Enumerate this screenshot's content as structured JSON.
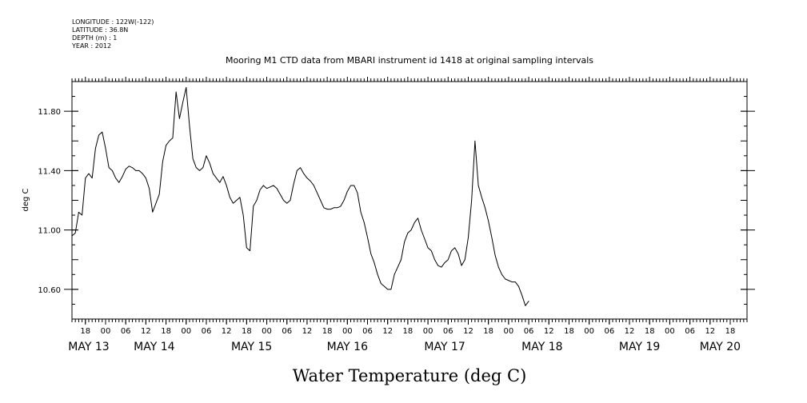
{
  "header": {
    "longitude": "LONGITUDE : 122W(-122)",
    "latitude": "LATITUDE : 36.8N",
    "depth": "DEPTH (m) : 1",
    "year": "YEAR : 2012"
  },
  "footer_label": "Water Temperature (deg C)",
  "chart_data": {
    "type": "line",
    "title": "Mooring M1 CTD data from MBARI instrument id 1418 at original sampling intervals",
    "xlabel": "",
    "ylabel": "deg C",
    "x_unit": "hours since 2012-05-12 14:00 (local plot axis)",
    "xlim": [
      0,
      201
    ],
    "ylim": [
      10.4,
      12.0
    ],
    "y_ticks": [
      10.6,
      11.0,
      11.4,
      11.8
    ],
    "y_tick_labels": [
      "10.60",
      "11.00",
      "11.40",
      "11.80"
    ],
    "x_hour_ticks": [
      {
        "x": 4,
        "label": "18"
      },
      {
        "x": 10,
        "label": "00"
      },
      {
        "x": 16,
        "label": "06"
      },
      {
        "x": 22,
        "label": "12"
      },
      {
        "x": 28,
        "label": "18"
      },
      {
        "x": 34,
        "label": "00"
      },
      {
        "x": 40,
        "label": "06"
      },
      {
        "x": 46,
        "label": "12"
      },
      {
        "x": 52,
        "label": "18"
      },
      {
        "x": 58,
        "label": "00"
      },
      {
        "x": 64,
        "label": "06"
      },
      {
        "x": 70,
        "label": "12"
      },
      {
        "x": 76,
        "label": "18"
      },
      {
        "x": 82,
        "label": "00"
      },
      {
        "x": 88,
        "label": "06"
      },
      {
        "x": 94,
        "label": "12"
      },
      {
        "x": 100,
        "label": "18"
      },
      {
        "x": 106,
        "label": "00"
      },
      {
        "x": 112,
        "label": "06"
      },
      {
        "x": 118,
        "label": "12"
      },
      {
        "x": 124,
        "label": "18"
      },
      {
        "x": 130,
        "label": "00"
      },
      {
        "x": 136,
        "label": "06"
      },
      {
        "x": 142,
        "label": "12"
      },
      {
        "x": 148,
        "label": "18"
      },
      {
        "x": 154,
        "label": "00"
      },
      {
        "x": 160,
        "label": "06"
      },
      {
        "x": 166,
        "label": "12"
      },
      {
        "x": 172,
        "label": "18"
      },
      {
        "x": 178,
        "label": "00"
      },
      {
        "x": 184,
        "label": "06"
      },
      {
        "x": 190,
        "label": "12"
      },
      {
        "x": 196,
        "label": "18"
      }
    ],
    "x_date_labels": [
      {
        "x": 5,
        "label": "MAY 13"
      },
      {
        "x": 24.5,
        "label": "MAY 14"
      },
      {
        "x": 53.5,
        "label": "MAY 15"
      },
      {
        "x": 82,
        "label": "MAY 16"
      },
      {
        "x": 111,
        "label": "MAY 17"
      },
      {
        "x": 140,
        "label": "MAY 18"
      },
      {
        "x": 169,
        "label": "MAY 19"
      },
      {
        "x": 193,
        "label": "MAY 20"
      }
    ],
    "series": [
      {
        "points": [
          [
            0,
            10.96
          ],
          [
            1,
            10.98
          ],
          [
            2,
            11.12
          ],
          [
            3,
            11.1
          ],
          [
            4,
            11.35
          ],
          [
            5,
            11.38
          ],
          [
            6,
            11.35
          ],
          [
            7,
            11.55
          ],
          [
            8,
            11.64
          ],
          [
            9,
            11.66
          ],
          [
            10,
            11.55
          ],
          [
            11,
            11.42
          ],
          [
            12,
            11.4
          ],
          [
            13,
            11.35
          ],
          [
            14,
            11.32
          ],
          [
            15,
            11.36
          ],
          [
            16,
            11.41
          ],
          [
            17,
            11.43
          ],
          [
            18,
            11.42
          ],
          [
            19,
            11.4
          ],
          [
            20,
            11.4
          ],
          [
            21,
            11.38
          ],
          [
            22,
            11.35
          ],
          [
            23,
            11.28
          ],
          [
            24,
            11.12
          ],
          [
            25,
            11.18
          ],
          [
            26,
            11.24
          ],
          [
            27,
            11.46
          ],
          [
            28,
            11.57
          ],
          [
            29,
            11.6
          ],
          [
            30,
            11.62
          ],
          [
            31,
            11.93
          ],
          [
            32,
            11.75
          ],
          [
            33,
            11.86
          ],
          [
            34,
            11.96
          ],
          [
            35,
            11.7
          ],
          [
            36,
            11.48
          ],
          [
            37,
            11.42
          ],
          [
            38,
            11.4
          ],
          [
            39,
            11.42
          ],
          [
            40,
            11.5
          ],
          [
            41,
            11.45
          ],
          [
            42,
            11.38
          ],
          [
            43,
            11.35
          ],
          [
            44,
            11.32
          ],
          [
            45,
            11.36
          ],
          [
            46,
            11.3
          ],
          [
            47,
            11.22
          ],
          [
            48,
            11.18
          ],
          [
            49,
            11.2
          ],
          [
            50,
            11.22
          ],
          [
            51,
            11.1
          ],
          [
            52,
            10.88
          ],
          [
            53,
            10.86
          ],
          [
            54,
            11.16
          ],
          [
            55,
            11.2
          ],
          [
            56,
            11.27
          ],
          [
            57,
            11.3
          ],
          [
            58,
            11.28
          ],
          [
            59,
            11.29
          ],
          [
            60,
            11.3
          ],
          [
            61,
            11.28
          ],
          [
            62,
            11.24
          ],
          [
            63,
            11.2
          ],
          [
            64,
            11.18
          ],
          [
            65,
            11.2
          ],
          [
            66,
            11.31
          ],
          [
            67,
            11.4
          ],
          [
            68,
            11.42
          ],
          [
            69,
            11.38
          ],
          [
            70,
            11.35
          ],
          [
            71,
            11.33
          ],
          [
            72,
            11.3
          ],
          [
            73,
            11.25
          ],
          [
            74,
            11.2
          ],
          [
            75,
            11.15
          ],
          [
            76,
            11.14
          ],
          [
            77,
            11.14
          ],
          [
            78,
            11.15
          ],
          [
            79,
            11.15
          ],
          [
            80,
            11.16
          ],
          [
            81,
            11.2
          ],
          [
            82,
            11.26
          ],
          [
            83,
            11.3
          ],
          [
            84,
            11.3
          ],
          [
            85,
            11.25
          ],
          [
            86,
            11.12
          ],
          [
            87,
            11.05
          ],
          [
            88,
            10.95
          ],
          [
            89,
            10.84
          ],
          [
            90,
            10.78
          ],
          [
            91,
            10.7
          ],
          [
            92,
            10.64
          ],
          [
            93,
            10.62
          ],
          [
            94,
            10.6
          ],
          [
            95,
            10.6
          ],
          [
            96,
            10.7
          ],
          [
            97,
            10.75
          ],
          [
            98,
            10.8
          ],
          [
            99,
            10.92
          ],
          [
            100,
            10.98
          ],
          [
            101,
            11.0
          ],
          [
            102,
            11.05
          ],
          [
            103,
            11.08
          ],
          [
            104,
            11.0
          ],
          [
            105,
            10.94
          ],
          [
            106,
            10.88
          ],
          [
            107,
            10.86
          ],
          [
            108,
            10.8
          ],
          [
            109,
            10.76
          ],
          [
            110,
            10.75
          ],
          [
            111,
            10.78
          ],
          [
            112,
            10.8
          ],
          [
            113,
            10.86
          ],
          [
            114,
            10.88
          ],
          [
            115,
            10.84
          ],
          [
            116,
            10.76
          ],
          [
            117,
            10.8
          ],
          [
            118,
            10.95
          ],
          [
            119,
            11.2
          ],
          [
            120,
            11.6
          ],
          [
            121,
            11.3
          ],
          [
            122,
            11.22
          ],
          [
            123,
            11.15
          ],
          [
            124,
            11.06
          ],
          [
            125,
            10.95
          ],
          [
            126,
            10.83
          ],
          [
            127,
            10.75
          ],
          [
            128,
            10.7
          ],
          [
            129,
            10.67
          ],
          [
            130,
            10.66
          ],
          [
            131,
            10.65
          ],
          [
            132,
            10.65
          ],
          [
            133,
            10.62
          ],
          [
            134,
            10.56
          ],
          [
            135,
            10.49
          ],
          [
            136,
            10.52
          ]
        ]
      }
    ]
  }
}
